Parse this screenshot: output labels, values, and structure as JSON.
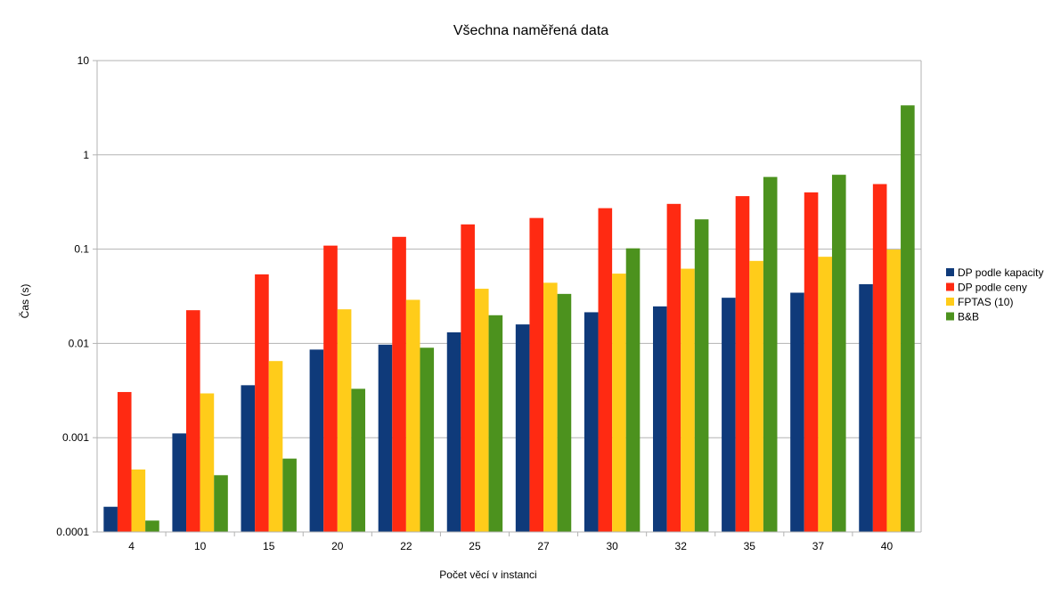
{
  "chart_data": {
    "type": "bar",
    "title": "Všechna naměřená data",
    "xlabel": "Počet věcí v instanci",
    "ylabel": "Čas (s)",
    "yscale": "log",
    "ylim": [
      0.0001,
      10
    ],
    "yticks": [
      "10",
      "1",
      "0.1",
      "0.01",
      "0.001",
      "0.0001"
    ],
    "grid": true,
    "legend_position": "right",
    "categories": [
      "4",
      "10",
      "15",
      "20",
      "22",
      "25",
      "27",
      "30",
      "32",
      "35",
      "37",
      "40"
    ],
    "series": [
      {
        "name": "DP podle kapacity",
        "color": "#0f3a7a",
        "values": [
          0.000185,
          0.00111,
          0.0036,
          0.0086,
          0.0097,
          0.0131,
          0.0159,
          0.0214,
          0.0247,
          0.0305,
          0.0345,
          0.0425
        ]
      },
      {
        "name": "DP podle ceny",
        "color": "#ff2a12",
        "values": [
          0.00305,
          0.0225,
          0.054,
          0.109,
          0.135,
          0.183,
          0.214,
          0.272,
          0.302,
          0.365,
          0.4,
          0.49
        ]
      },
      {
        "name": "FPTAS (10)",
        "color": "#ffcc1a",
        "values": [
          0.00046,
          0.00295,
          0.0065,
          0.023,
          0.029,
          0.038,
          0.044,
          0.055,
          0.062,
          0.075,
          0.083,
          0.099
        ]
      },
      {
        "name": "B&B",
        "color": "#4c921e",
        "values": [
          0.000132,
          0.0004,
          0.0006,
          0.0033,
          0.009,
          0.0199,
          0.0335,
          0.102,
          0.207,
          0.583,
          0.615,
          3.35
        ]
      }
    ]
  }
}
